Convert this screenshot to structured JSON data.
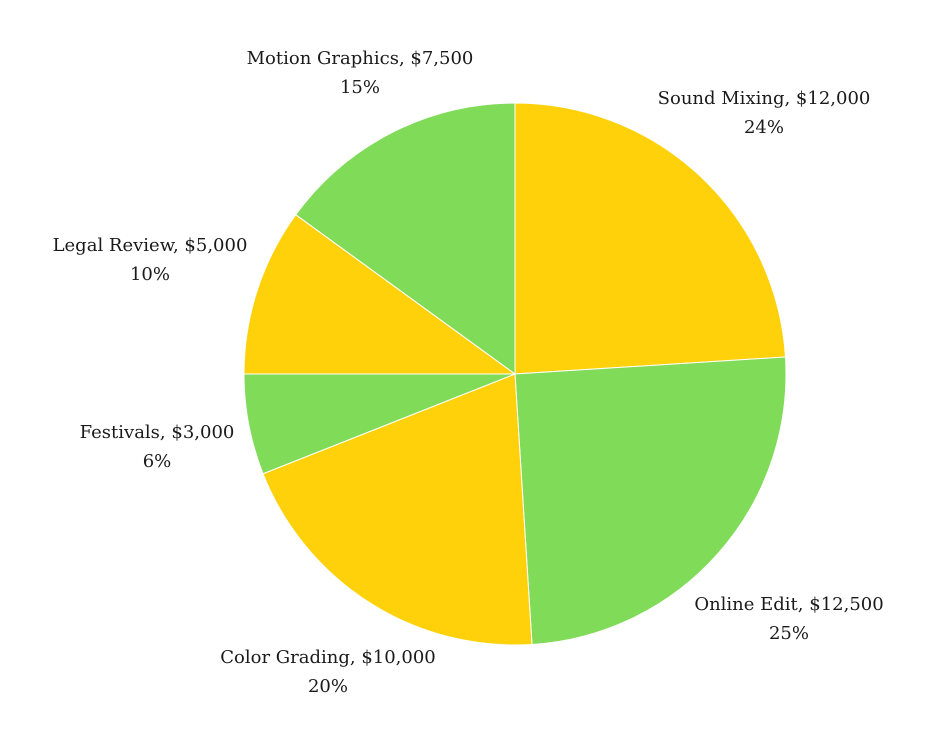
{
  "chart_data": {
    "type": "pie",
    "start_angle_deg": 0,
    "direction": "clockwise",
    "slices": [
      {
        "label": "Sound Mixing",
        "value_text": "$12,000",
        "value": 12000,
        "percent_text": "24%",
        "color": "#ffd10a"
      },
      {
        "label": "Online Edit",
        "value_text": "$12,500",
        "value": 12500,
        "percent_text": "25%",
        "color": "#80db58"
      },
      {
        "label": "Color Grading",
        "value_text": "$10,000",
        "value": 10000,
        "percent_text": "20%",
        "color": "#ffd10a"
      },
      {
        "label": "Festivals",
        "value_text": "$3,000",
        "value": 3000,
        "percent_text": "6%",
        "color": "#80db58"
      },
      {
        "label": "Legal Review",
        "value_text": "$5,000",
        "value": 5000,
        "percent_text": "10%",
        "color": "#ffd10a"
      },
      {
        "label": "Motion Graphics",
        "value_text": "$7,500",
        "value": 7500,
        "percent_text": "15%",
        "color": "#80db58"
      }
    ]
  }
}
